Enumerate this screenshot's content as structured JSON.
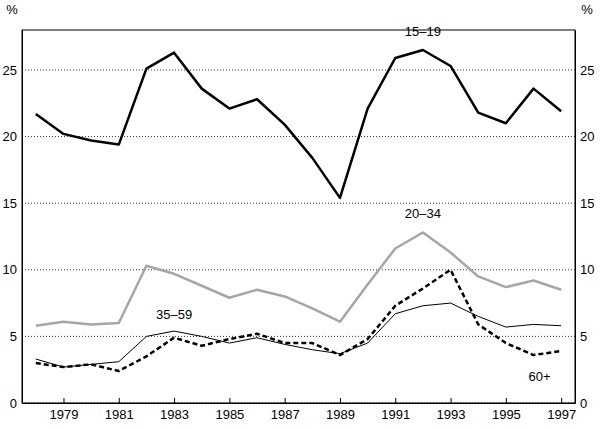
{
  "chart_data": {
    "type": "line",
    "y_label": "%",
    "x": [
      1978,
      1979,
      1980,
      1981,
      1982,
      1983,
      1984,
      1985,
      1986,
      1987,
      1988,
      1989,
      1990,
      1991,
      1992,
      1993,
      1994,
      1995,
      1996,
      1997
    ],
    "xlim": [
      1977.5,
      1997.5
    ],
    "xticks": [
      1979,
      1981,
      1983,
      1985,
      1987,
      1989,
      1991,
      1993,
      1995,
      1997
    ],
    "ylim": [
      0,
      28
    ],
    "yticks": [
      0,
      5,
      10,
      15,
      20,
      25
    ],
    "grid": true,
    "series": [
      {
        "name": "15–19",
        "color": "#000000",
        "line_style": "solid",
        "values": [
          21.7,
          20.2,
          19.7,
          19.4,
          25.1,
          26.3,
          23.6,
          22.1,
          22.8,
          20.9,
          18.4,
          15.4,
          22.1,
          25.9,
          26.5,
          25.3,
          21.8,
          21.0,
          23.6,
          21.9
        ]
      },
      {
        "name": "20–34",
        "color": "#a6a6a6",
        "line_style": "solid",
        "values": [
          5.8,
          6.1,
          5.9,
          6.0,
          10.3,
          9.7,
          8.8,
          7.9,
          8.5,
          8.0,
          7.1,
          6.1,
          8.9,
          11.6,
          12.8,
          11.3,
          9.5,
          8.7,
          9.2,
          8.5
        ]
      },
      {
        "name": "35–59",
        "color": "#000000",
        "line_style": "thin",
        "values": [
          3.3,
          2.7,
          2.9,
          3.1,
          5.0,
          5.4,
          5.0,
          4.5,
          4.9,
          4.4,
          4.0,
          3.7,
          4.5,
          6.7,
          7.3,
          7.5,
          6.5,
          5.7,
          5.9,
          5.8
        ]
      },
      {
        "name": "60+",
        "color": "#000000",
        "line_style": "dashed",
        "values": [
          3.0,
          2.7,
          2.9,
          2.4,
          3.5,
          4.9,
          4.3,
          4.8,
          5.2,
          4.5,
          4.5,
          3.6,
          4.8,
          7.3,
          8.6,
          10.0,
          5.9,
          4.5,
          3.6,
          3.9
        ]
      }
    ]
  }
}
